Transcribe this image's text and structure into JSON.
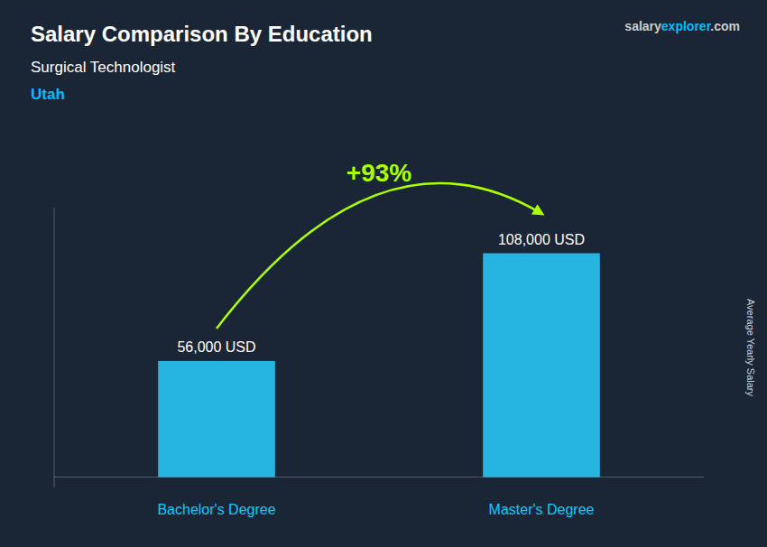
{
  "chart_data": {
    "type": "bar",
    "title": "Salary Comparison By Education",
    "subtitle": "Surgical Technologist",
    "annotations": [
      "Utah",
      "+93%",
      "salary",
      "explorer",
      ".com"
    ],
    "y_label": "Average Yearly Salary",
    "categories": [
      "Bachelor's Degree",
      "Master's Degree"
    ],
    "values": [
      56000,
      108000
    ],
    "value_labels": [
      "56,000 USD",
      "108,000 USD"
    ],
    "color": "#29CEFF",
    "data_labels": true,
    "tick_labels": "x",
    "ylim": [
      -5000,
      130000
    ]
  }
}
